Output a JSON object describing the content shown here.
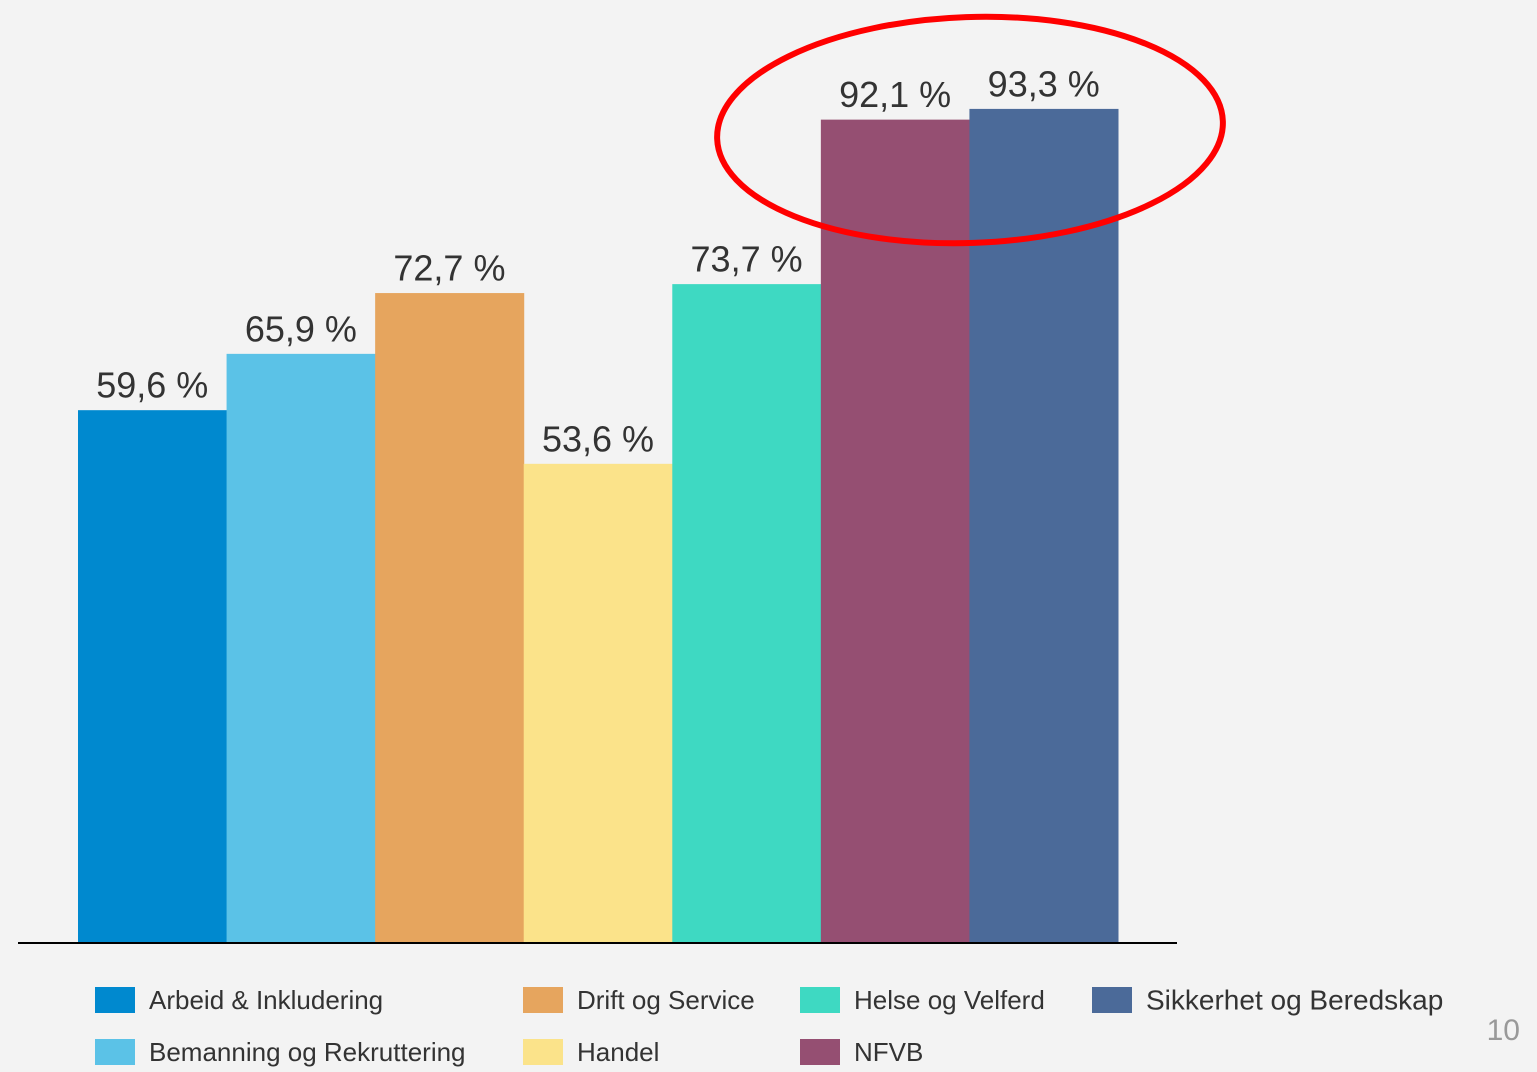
{
  "chart_data": {
    "type": "bar",
    "categories": [
      "Arbeid & Inkludering",
      "Bemanning og Rekruttering",
      "Drift og Service",
      "Handel",
      "Helse og Velferd",
      "NFVB",
      "Sikkerhet og Beredskap"
    ],
    "values": [
      59.6,
      65.9,
      72.7,
      53.6,
      73.7,
      92.1,
      93.3
    ],
    "value_labels": [
      "59,6 %",
      "65,9 %",
      "72,7 %",
      "53,6 %",
      "73,7 %",
      "92,1 %",
      "93,3 %"
    ],
    "colors": [
      "#0089cf",
      "#5bc2e7",
      "#e6a55e",
      "#fbe38a",
      "#3ed9c2",
      "#954f72",
      "#4b6a99"
    ],
    "ylim": [
      0,
      100
    ],
    "legend": "bottom"
  },
  "page_number": "10"
}
